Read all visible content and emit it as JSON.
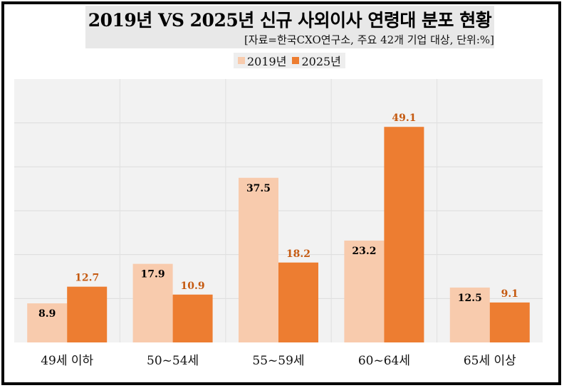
{
  "title": "2019년 VS 2025년 신규 사외이사 연령대 분포 현황",
  "source": "[자료=한국CXO연구소, 주요 42개 기업 대상, 단위:%]",
  "legend": [
    {
      "label": "2019년",
      "color": "#f8cbad"
    },
    {
      "label": "2025년",
      "color": "#ed7d31"
    }
  ],
  "chart_data": {
    "type": "bar",
    "title": "2019년 VS 2025년 신규 사외이사 연령대 분포 현황",
    "categories": [
      "49세 이하",
      "50~54세",
      "55~59세",
      "60~64세",
      "65세 이상"
    ],
    "series": [
      {
        "name": "2019년",
        "values": [
          8.9,
          17.9,
          37.5,
          23.2,
          12.5
        ],
        "color": "#f8cbad",
        "label_color": "#000000"
      },
      {
        "name": "2025년",
        "values": [
          12.7,
          10.9,
          18.2,
          49.1,
          9.1
        ],
        "color": "#ed7d31",
        "label_color": "#c55a11"
      }
    ],
    "ylim": [
      0,
      60
    ],
    "grid": true,
    "legend_position": "top",
    "unit": "%"
  }
}
